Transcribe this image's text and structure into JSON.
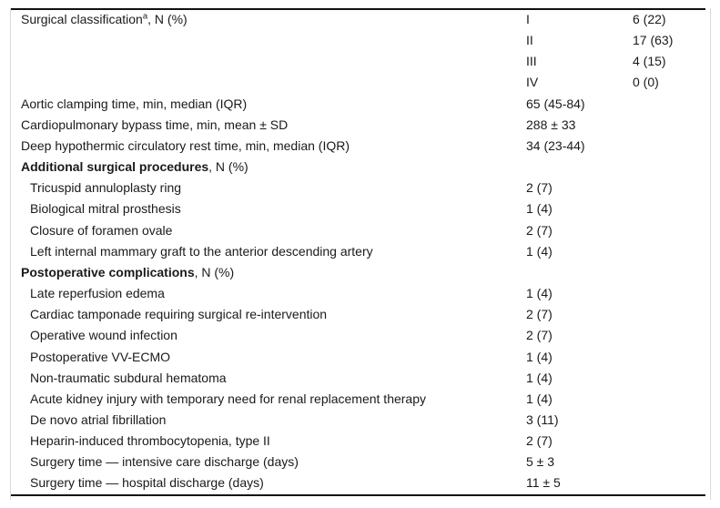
{
  "colors": {
    "text": "#1a1a1a",
    "rule": "#111111",
    "guide_line": "#d9d9d9",
    "background": "#ffffff"
  },
  "table": {
    "rows": [
      {
        "label": "Surgical classification",
        "sup": "a",
        "rest": ", N (%)",
        "c2": "I",
        "c3": "6 (22)"
      },
      {
        "label": "",
        "c2": "II",
        "c3": "17 (63)"
      },
      {
        "label": "",
        "c2": "III",
        "c3": "4 (15)"
      },
      {
        "label": "",
        "c2": "IV",
        "c3": "0 (0)"
      },
      {
        "label": "Aortic clamping time, min, median (IQR)",
        "c2": "65 (45-84)"
      },
      {
        "label": "Cardiopulmonary bypass time, min, mean ± SD",
        "c2": "288 ± 33"
      },
      {
        "label": "Deep hypothermic circulatory rest time, min, median (IQR)",
        "c2": "34 (23-44)"
      },
      {
        "label": "Additional surgical procedures",
        "bold": true,
        "rest": ", N (%)"
      },
      {
        "label": "Tricuspid annuloplasty ring",
        "indent": true,
        "c2": "2 (7)"
      },
      {
        "label": "Biological mitral prosthesis",
        "indent": true,
        "c2": "1 (4)"
      },
      {
        "label": "Closure of foramen ovale",
        "indent": true,
        "c2": "2 (7)"
      },
      {
        "label": "Left internal mammary graft to the anterior descending artery",
        "indent": true,
        "c2": "1 (4)"
      },
      {
        "label": "Postoperative complications",
        "bold": true,
        "rest": ", N (%)"
      },
      {
        "label": "Late reperfusion edema",
        "indent": true,
        "c2": "1 (4)"
      },
      {
        "label": "Cardiac tamponade requiring surgical re-intervention",
        "indent": true,
        "c2": "2 (7)"
      },
      {
        "label": "Operative wound infection",
        "indent": true,
        "c2": "2 (7)"
      },
      {
        "label": "Postoperative VV-ECMO",
        "indent": true,
        "c2": "1 (4)"
      },
      {
        "label": "Non-traumatic subdural hematoma",
        "indent": true,
        "c2": "1 (4)"
      },
      {
        "label": "Acute kidney injury with temporary need for renal replacement therapy",
        "indent": true,
        "c2": "1 (4)"
      },
      {
        "label": "De novo atrial fibrillation",
        "indent": true,
        "c2": "3 (11)"
      },
      {
        "label": "Heparin-induced thrombocytopenia, type II",
        "indent": true,
        "c2": "2 (7)"
      },
      {
        "label": "Surgery time — intensive care discharge (days)",
        "indent": true,
        "c2": "5 ± 3"
      },
      {
        "label": "Surgery time — hospital discharge (days)",
        "indent": true,
        "c2": "11 ± 5"
      }
    ]
  }
}
